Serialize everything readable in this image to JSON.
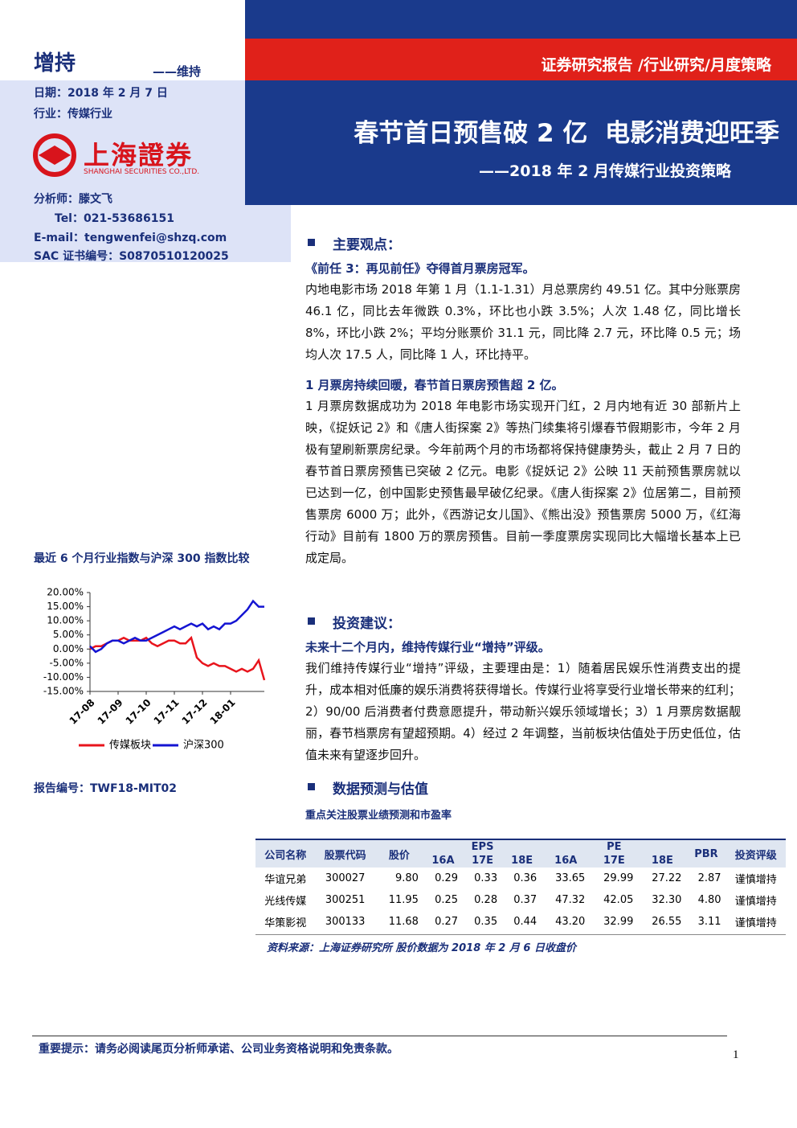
{
  "rating": {
    "current": "增持",
    "previous": "——维持"
  },
  "meta": {
    "date": "日期：2018 年 2 月 7 日",
    "industry": "行业：传媒行业"
  },
  "logo": {
    "cn": "上海證券",
    "en": "SHANGHAI SECURITIES CO.,LTD."
  },
  "analyst": {
    "name": "分析师：滕文飞",
    "tel": "Tel：021-53686151",
    "email": "E-mail：tengwenfei@shzq.com",
    "sac": "SAC 证书编号：S0870510120025"
  },
  "header": {
    "category": "证券研究报告 /行业研究/月度策略",
    "title": "春节首日预售破 2 亿  电影消费迎旺季",
    "subtitle": "——2018 年 2 月传媒行业投资策略"
  },
  "report_no": "报告编号：TWF18-MIT02",
  "sections": [
    {
      "heading": "主要观点：",
      "items": [
        {
          "lead": "《前任 3：再见前任》夺得首月票房冠军。",
          "body": "内地电影市场 2018 年第 1 月（1.1-1.31）月总票房约 49.51 亿。其中分账票房 46.1 亿，同比去年微跌 0.3%，环比也小跌 3.5%；人次 1.48 亿，同比增长 8%，环比小跌 2%；平均分账票价 31.1 元，同比降 2.7 元，环比降 0.5 元；场均人次 17.5 人，同比降 1 人，环比持平。"
        },
        {
          "lead": "1 月票房持续回暖，春节首日票房预售超 2 亿。",
          "body": "1 月票房数据成功为 2018 年电影市场实现开门红，2 月内地有近 30 部新片上映，《捉妖记 2》和《唐人街探案 2》等热门续集将引爆春节假期影市，今年 2 月极有望刷新票房纪录。今年前两个月的市场都将保持健康势头，截止 2 月 7 日的春节首日票房预售已突破 2 亿元。电影《捉妖记 2》公映 11 天前预售票房就以已达到一亿，创中国影史预售最早破亿纪录。《唐人街探案 2》位居第二，目前预售票房 6000 万；此外，《西游记女儿国》、《熊出没》预售票房 5000 万，《红海行动》目前有 1800 万的票房预售。目前一季度票房实现同比大幅增长基本上已成定局。"
        }
      ]
    },
    {
      "heading": "投资建议：",
      "items": [
        {
          "lead": "未来十二个月内，维持传媒行业“增持”评级。",
          "body": "我们维持传媒行业“增持”评级，主要理由是：1）随着居民娱乐性消费支出的提升，成本相对低廉的娱乐消费将获得增长。传媒行业将享受行业增长带来的红利；2）90/00 后消费者付费意愿提升，带动新兴娱乐领域增长；3）1 月票房数据靓丽，春节档票房有望超预期。4）经过 2 年调整，当前板块估值处于历史低位，估值未来有望逐步回升。"
        }
      ]
    },
    {
      "heading": "数据预测与估值",
      "caption": "重点关注股票业绩预测和市盈率"
    }
  ],
  "table": {
    "header": [
      "公司名称",
      "股票代码",
      "股价",
      "EPS",
      "PE",
      "PBR",
      "投资评级"
    ],
    "subheader": [
      "16A",
      "17E",
      "18E",
      "16A",
      "17E",
      "18E"
    ],
    "rows": [
      [
        "华谊兄弟",
        "300027",
        "9.80",
        "0.29",
        "0.33",
        "0.36",
        "33.65",
        "29.99",
        "27.22",
        "2.87",
        "谨慎增持"
      ],
      [
        "光线传媒",
        "300251",
        "11.95",
        "0.25",
        "0.28",
        "0.37",
        "47.32",
        "42.05",
        "32.30",
        "4.80",
        "谨慎增持"
      ],
      [
        "华策影视",
        "300133",
        "11.68",
        "0.27",
        "0.35",
        "0.44",
        "43.20",
        "32.99",
        "26.55",
        "3.11",
        "谨慎增持"
      ]
    ],
    "source": "资料来源：上海证券研究所 股价数据为 2018 年 2 月 6 日收盘价"
  },
  "footer": {
    "notice": "重要提示：请务必阅读尾页分析师承诺、公司业务资格说明和免责条款。",
    "page": "1"
  },
  "chart_data": {
    "type": "line",
    "title": "最近 6 个月行业指数与沪深 300 指数比较",
    "categories": [
      "17-08",
      null,
      null,
      null,
      null,
      "17-09",
      null,
      null,
      null,
      null,
      "17-10",
      null,
      null,
      null,
      null,
      "17-11",
      null,
      null,
      null,
      null,
      "17-12",
      null,
      null,
      null,
      null,
      "18-01",
      null,
      null,
      null,
      null,
      null,
      null
    ],
    "series": [
      {
        "name": "传媒板块",
        "color": "#e8141c",
        "values": [
          0,
          1,
          1,
          2,
          3,
          3,
          4,
          3,
          3,
          3,
          4,
          2,
          1,
          2,
          3,
          3,
          2,
          2,
          4,
          -3,
          -5,
          -6,
          -5,
          -6,
          -6,
          -7,
          -8,
          -7,
          -8,
          -7,
          -4,
          -11
        ]
      },
      {
        "name": "沪深300",
        "color": "#1414d2",
        "values": [
          1,
          -1,
          0,
          2,
          3,
          3,
          2,
          3,
          4,
          3,
          3,
          4,
          5,
          6,
          7,
          8,
          7,
          8,
          9,
          8,
          9,
          7,
          8,
          7,
          9,
          9,
          10,
          12,
          14,
          17,
          15,
          15
        ]
      }
    ],
    "ylim": [
      -15,
      20
    ],
    "yticks": [
      {
        "value": 20,
        "label": "20.00%"
      },
      {
        "value": 15,
        "label": "15.00%"
      },
      {
        "value": 10,
        "label": "10.00%"
      },
      {
        "value": 5,
        "label": "5.00%"
      },
      {
        "value": 0,
        "label": "0.00%"
      },
      {
        "value": -5,
        "label": "-5.00%"
      },
      {
        "value": -10,
        "label": "-10.00%"
      },
      {
        "value": -15,
        "label": "-15.00%"
      }
    ],
    "legend": "bottom"
  }
}
